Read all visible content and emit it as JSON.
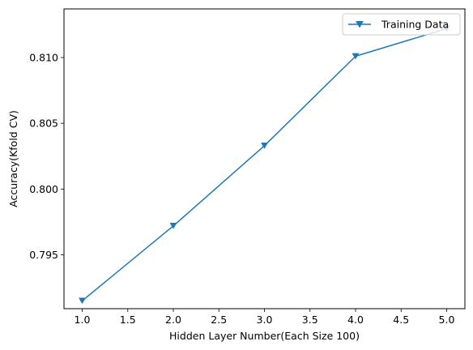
{
  "chart_data": {
    "type": "line",
    "x": [
      1.0,
      2.0,
      3.0,
      4.0,
      5.0
    ],
    "series": [
      {
        "name": "Training Data",
        "values": [
          0.7915,
          0.7972,
          0.8033,
          0.8101,
          0.8122
        ],
        "color": "#1f77b4",
        "marker": "triangle-down"
      }
    ],
    "xlabel": "Hidden Layer Number(Each Size 100)",
    "ylabel": "Accuracy(Kfold CV)",
    "xlim": [
      0.8,
      5.2
    ],
    "ylim": [
      0.7909,
      0.8137
    ],
    "xticks": [
      "1.0",
      "1.5",
      "2.0",
      "2.5",
      "3.0",
      "3.5",
      "4.0",
      "4.5",
      "5.0"
    ],
    "yticks": [
      "0.795",
      "0.800",
      "0.805",
      "0.810"
    ],
    "grid": false,
    "legend_position": "top-right"
  }
}
